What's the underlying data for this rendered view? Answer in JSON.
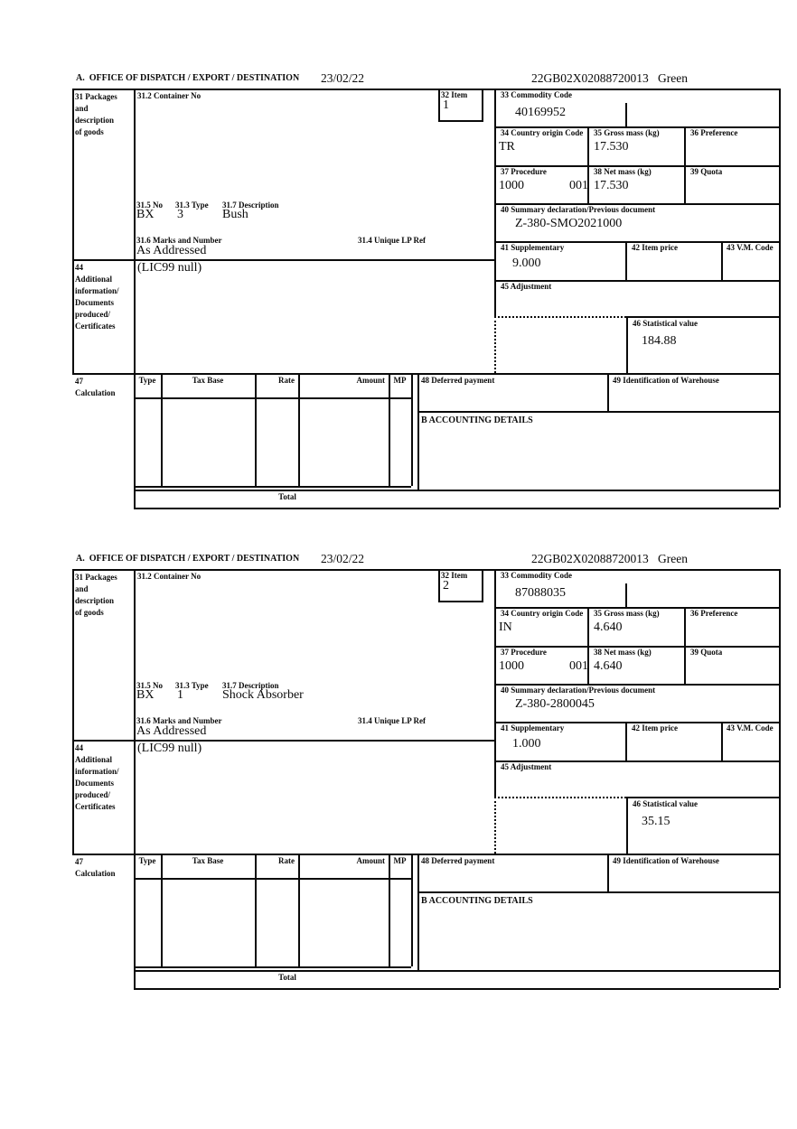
{
  "header": {
    "office_label": "A.  OFFICE OF DISPATCH / EXPORT / DESTINATION",
    "date": "23/02/22",
    "reference": "22GB02X02088720013",
    "status": "Green"
  },
  "labels": {
    "box31": [
      "31 Packages",
      "and",
      "description",
      "of goods"
    ],
    "box31_2": "31.2 Container No",
    "box32": "32 Item",
    "box33": "33 Commodity Code",
    "box34": "34 Country origin Code",
    "box35": "35 Gross mass (kg)",
    "box36": "36 Preference",
    "box37": "37 Procedure",
    "box38": "38 Net mass (kg)",
    "box39": "39 Quota",
    "box31_5": "31.5 No",
    "box31_3": "31.3 Type",
    "box31_7": "31.7 Description",
    "box31_6": "31.6 Marks and Number",
    "box31_4": "31.4 Unique LP Ref",
    "box40": "40 Summary declaration/Previous document",
    "box41": "41 Supplementary",
    "box42": "42 Item price",
    "box43": "43 V.M. Code",
    "box44": [
      "44",
      "Additional",
      "information/",
      "Documents",
      "produced/",
      "Certificates"
    ],
    "box45": "45 Adjustment",
    "box46": "46 Statistical value",
    "box47": [
      "47",
      "Calculation"
    ],
    "calc_columns": [
      "Type",
      "Tax Base",
      "Rate",
      "Amount",
      "MP"
    ],
    "box48": "48 Deferred payment",
    "box49": "49 Identification of Warehouse",
    "accounting": "B ACCOUNTING DETAILS",
    "total": "Total"
  },
  "items": [
    {
      "item_number": "1",
      "commodity_code": "40169952",
      "country_origin": "TR",
      "gross_mass": "17.530",
      "procedure": "1000",
      "procedure_suffix": "001",
      "net_mass": "17.530",
      "package_code": "BX",
      "package_type": "3",
      "description": "Bush",
      "marks": "As Addressed",
      "previous_document": "Z-380-SMO2021000",
      "supplementary": "9.000",
      "additional_info": "(LIC99 null)",
      "statistical_value": "184.88"
    },
    {
      "item_number": "2",
      "commodity_code": "87088035",
      "country_origin": "IN",
      "gross_mass": "4.640",
      "procedure": "1000",
      "procedure_suffix": "001",
      "net_mass": "4.640",
      "package_code": "BX",
      "package_type": "1",
      "description": "Shock Absorber",
      "marks": "As Addressed",
      "previous_document": "Z-380-2800045",
      "supplementary": "1.000",
      "additional_info": "(LIC99 null)",
      "statistical_value": "35.15"
    }
  ]
}
